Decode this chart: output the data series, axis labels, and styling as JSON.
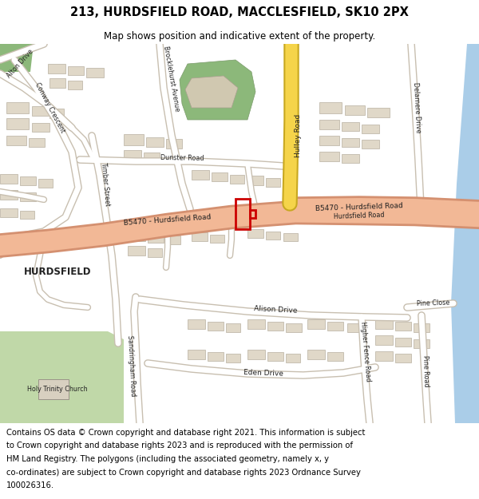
{
  "title_line1": "213, HURDSFIELD ROAD, MACCLESFIELD, SK10 2PX",
  "title_line2": "Map shows position and indicative extent of the property.",
  "footer_lines": [
    "Contains OS data © Crown copyright and database right 2021. This information is subject",
    "to Crown copyright and database rights 2023 and is reproduced with the permission of",
    "HM Land Registry. The polygons (including the associated geometry, namely x, y",
    "co-ordinates) are subject to Crown copyright and database rights 2023 Ordnance Survey",
    "100026316."
  ],
  "bg": "#ffffff",
  "map_bg": "#f0ebe4",
  "road_major": "#f2b896",
  "road_major_border": "#d49070",
  "road_minor": "#ffffff",
  "road_minor_border": "#c8bfb0",
  "road_yellow": "#f5d44a",
  "road_yellow_border": "#c8a820",
  "green_dark": "#8cb87a",
  "green_light": "#c0d8a8",
  "building": "#e0d8c8",
  "building_border": "#b8b0a0",
  "water": "#aacde8",
  "property_color": "#cc0000",
  "title1_fontsize": 10.5,
  "title2_fontsize": 8.5,
  "footer_fontsize": 7.2,
  "label_fontsize": 6.5,
  "label_small_fontsize": 5.8
}
